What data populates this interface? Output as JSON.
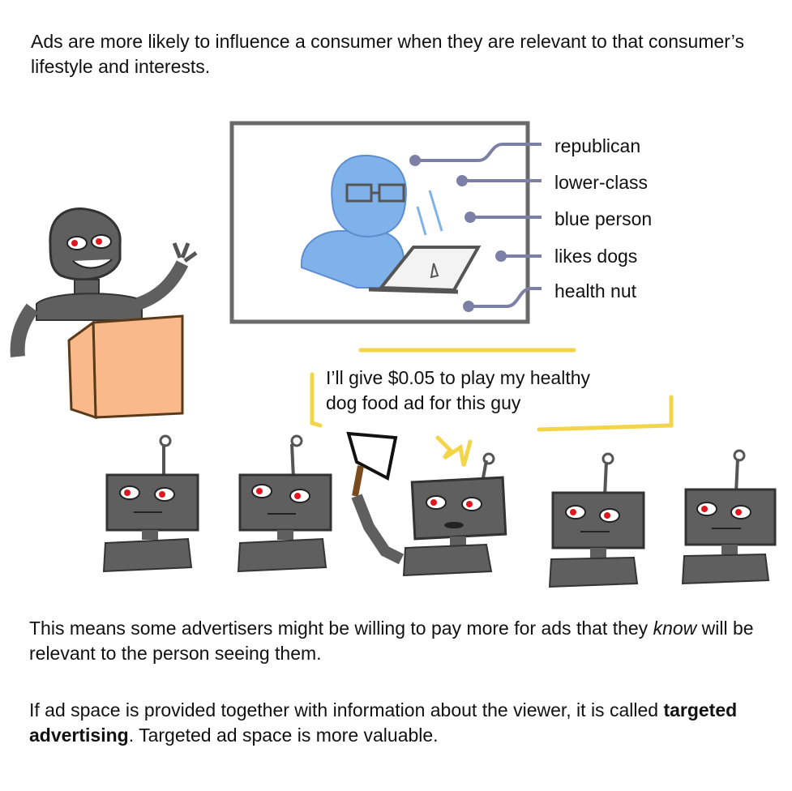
{
  "intro_text": "Ads are more likely to influence a consumer when they are relevant to that consumer’s lifestyle and interests.",
  "profile_labels": [
    "republican",
    "lower-class",
    "blue person",
    "likes dogs",
    "health nut"
  ],
  "bid_speech": {
    "line1": "I’ll give $0.05 to play my healthy",
    "line2": "dog food ad for this guy"
  },
  "para1": {
    "before": "This means some advertisers might be willing to pay more for ads that they ",
    "emphasis": "know",
    "after": " will be relevant to the person seeing them."
  },
  "para2": {
    "before": "If ad space is provided together with information about the viewer, it is called ",
    "bold": "targeted advertising",
    "after": ". Targeted ad space is more valuable."
  },
  "colors": {
    "robot_body": "#5f5f5f",
    "robot_eye": "#e0171f",
    "podium": "#f9b98a",
    "podium_edge": "#5b3a1a",
    "person_blue": "#7fb2ea",
    "connector": "#7c7fa6",
    "speech_yellow": "#f3d54a",
    "screen_frame": "#6a6a6a"
  }
}
